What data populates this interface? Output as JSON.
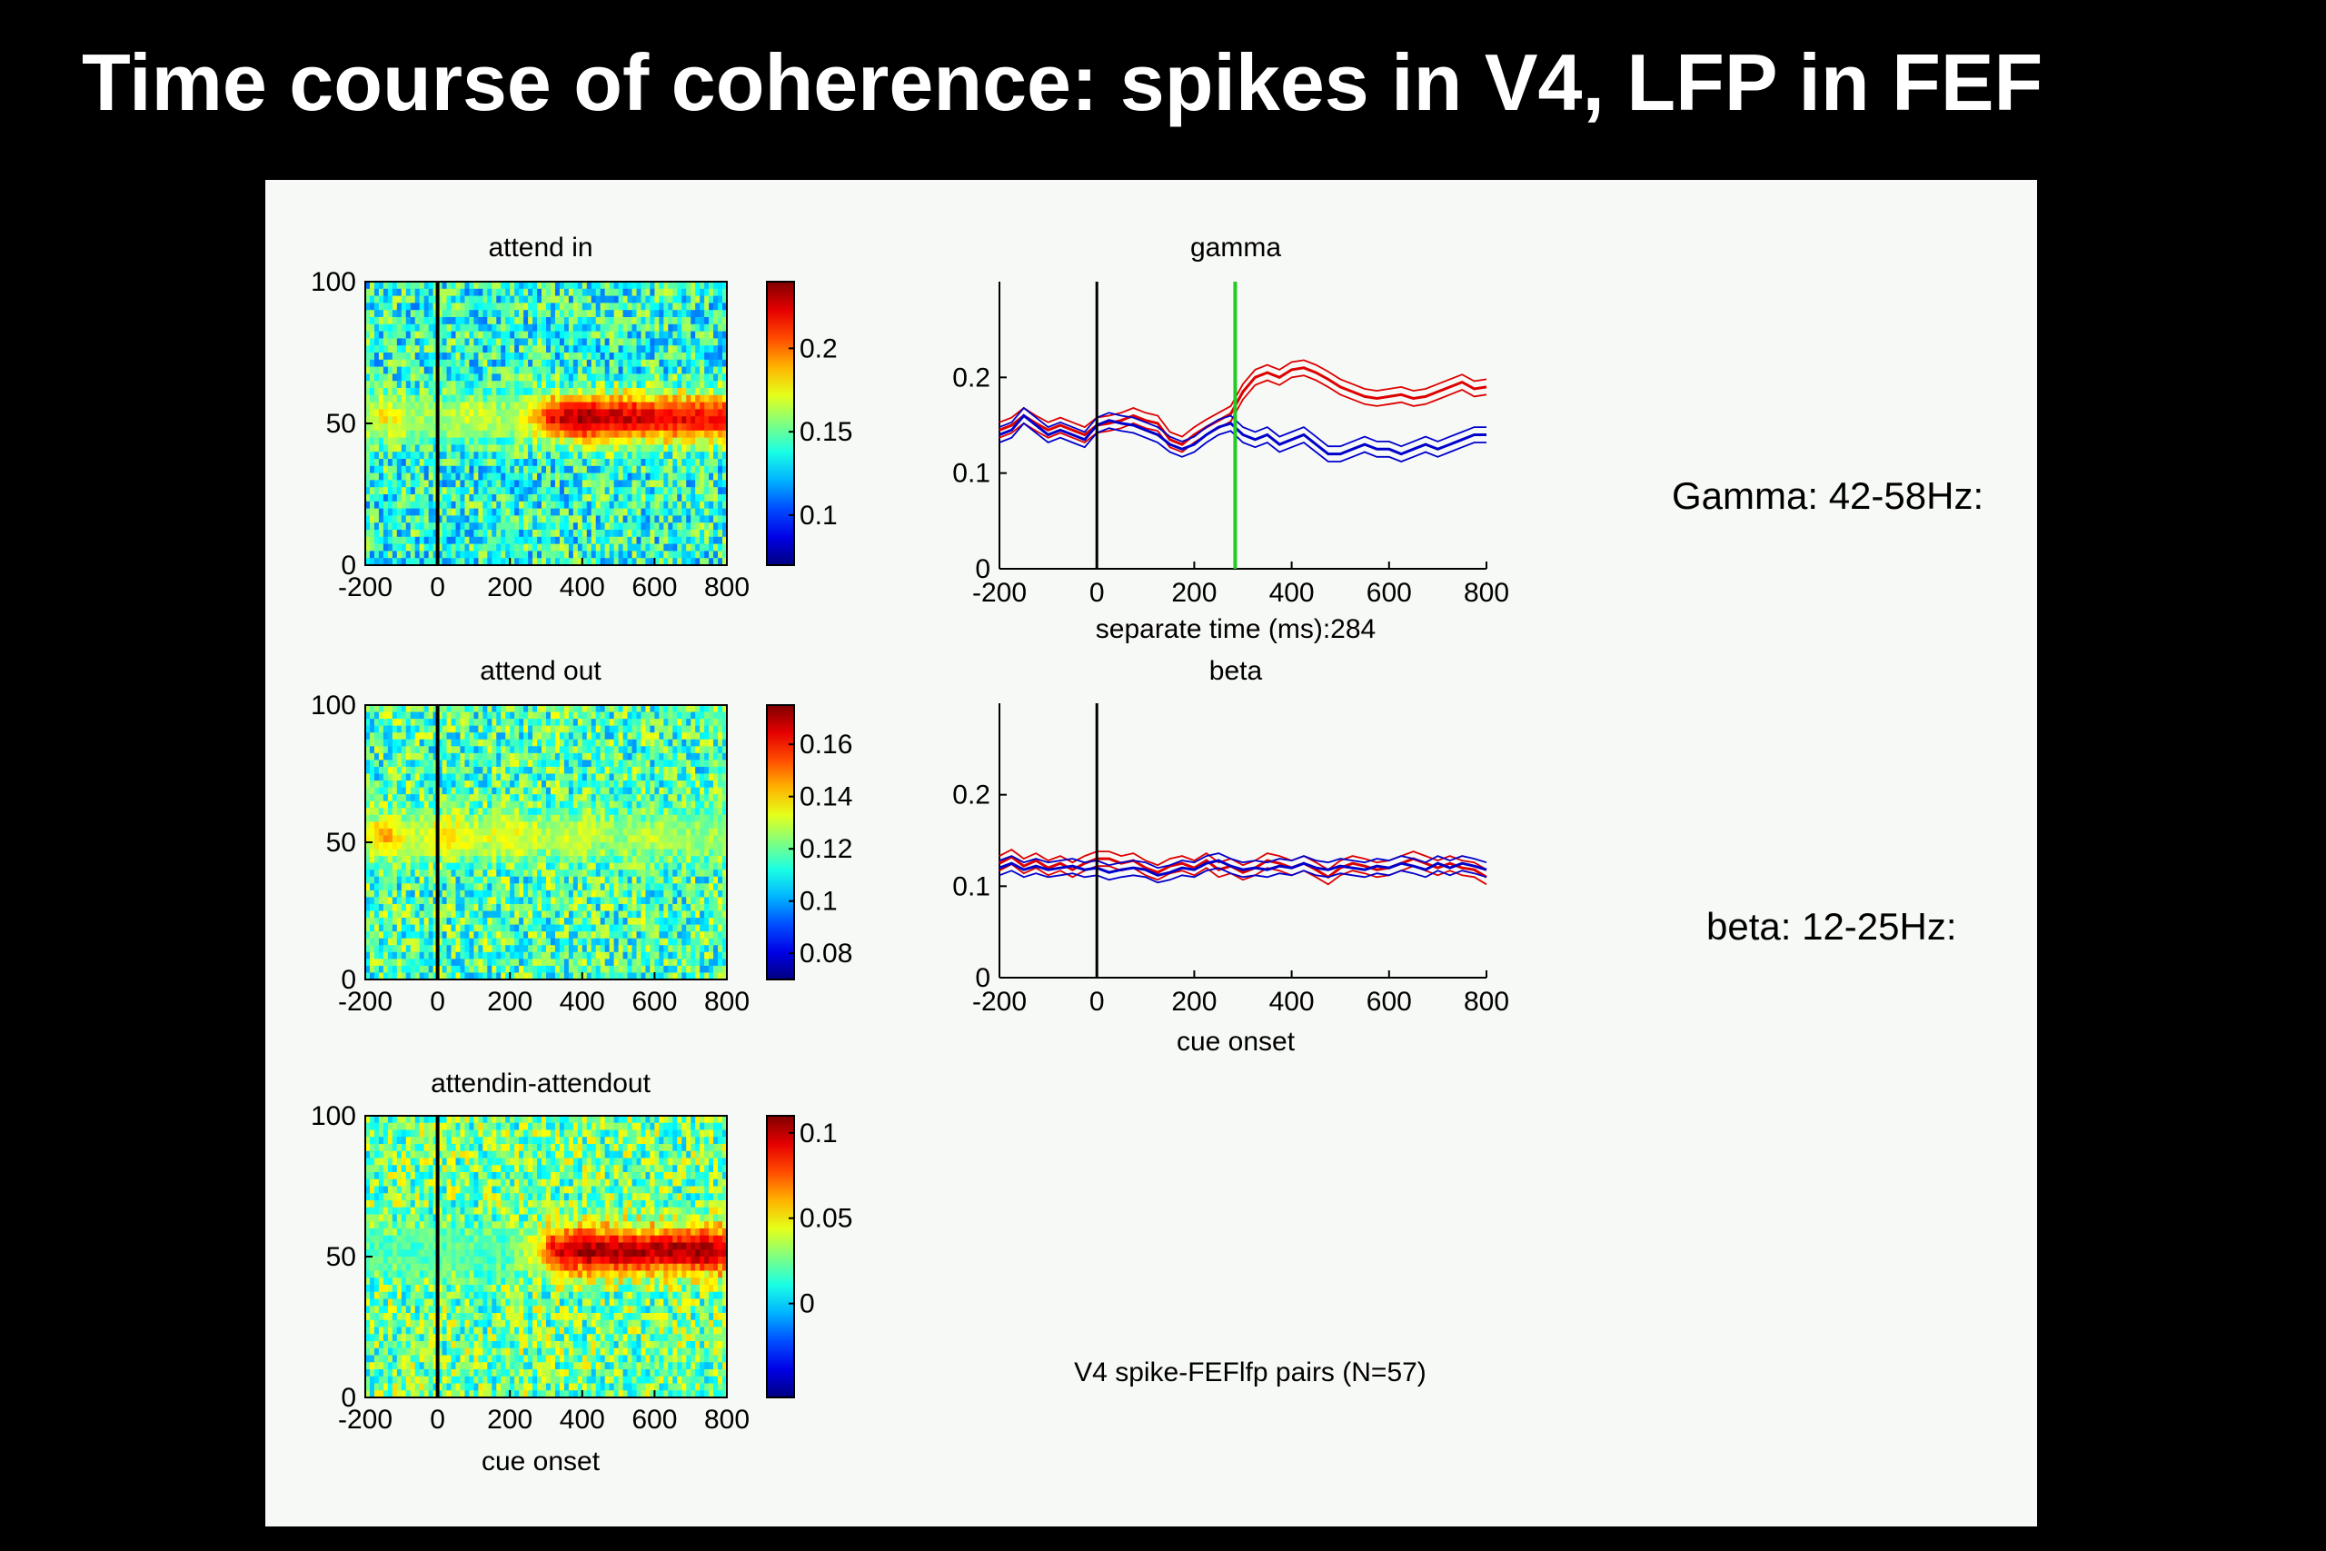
{
  "slide": {
    "title": "Time course of coherence: spikes in V4, LFP in FEF",
    "gamma_note": "Gamma: 42-58Hz:",
    "beta_note": "beta: 12-25Hz:",
    "footnote": "V4 spike-FEFlfp pairs (N=57)"
  },
  "colors": {
    "background": "#000000",
    "panel": "#f7f9f6",
    "attend_in_line": "#dd0000",
    "attend_out_line": "#0000cc",
    "separation_marker": "#22cc22",
    "onset_marker": "#000000"
  },
  "chart_data": [
    {
      "type": "heatmap",
      "title": "attend in",
      "xlabel": "",
      "x_ticks": [
        "-200",
        "0",
        "200",
        "400",
        "600",
        "800"
      ],
      "y_ticks": [
        "0",
        "50",
        "100"
      ],
      "xlim": [
        -200,
        800
      ],
      "ylim": [
        0,
        100
      ],
      "colorbar_ticks": [
        "0.1",
        "0.15",
        "0.2"
      ],
      "colorbar_range": [
        0.07,
        0.24
      ],
      "vertical_marker_x": 0,
      "band": {
        "low": 42,
        "high": 58,
        "center": 52,
        "profile": [
          [
            -200,
            0.16
          ],
          [
            -150,
            0.18
          ],
          [
            -100,
            0.17
          ],
          [
            -50,
            0.16
          ],
          [
            0,
            0.16
          ],
          [
            100,
            0.17
          ],
          [
            200,
            0.16
          ],
          [
            280,
            0.19
          ],
          [
            320,
            0.22
          ],
          [
            400,
            0.235
          ],
          [
            500,
            0.225
          ],
          [
            600,
            0.225
          ],
          [
            700,
            0.22
          ],
          [
            800,
            0.22
          ]
        ]
      },
      "background_level": 0.14
    },
    {
      "type": "heatmap",
      "title": "attend out",
      "xlabel": "",
      "x_ticks": [
        "-200",
        "0",
        "200",
        "400",
        "600",
        "800"
      ],
      "y_ticks": [
        "0",
        "50",
        "100"
      ],
      "xlim": [
        -200,
        800
      ],
      "ylim": [
        0,
        100
      ],
      "colorbar_ticks": [
        "0.08",
        "0.1",
        "0.12",
        "0.14",
        "0.16"
      ],
      "colorbar_range": [
        0.07,
        0.175
      ],
      "vertical_marker_x": 0,
      "band": {
        "low": 42,
        "high": 58,
        "center": 52,
        "profile": [
          [
            -200,
            0.13
          ],
          [
            -150,
            0.145
          ],
          [
            -100,
            0.135
          ],
          [
            -50,
            0.13
          ],
          [
            0,
            0.14
          ],
          [
            50,
            0.14
          ],
          [
            100,
            0.13
          ],
          [
            200,
            0.135
          ],
          [
            300,
            0.128
          ],
          [
            400,
            0.13
          ],
          [
            500,
            0.125
          ],
          [
            600,
            0.128
          ],
          [
            700,
            0.125
          ],
          [
            800,
            0.125
          ]
        ]
      },
      "background_level": 0.117
    },
    {
      "type": "heatmap",
      "title": "attendin-attendout",
      "xlabel": "cue onset",
      "x_ticks": [
        "-200",
        "0",
        "200",
        "400",
        "600",
        "800"
      ],
      "y_ticks": [
        "0",
        "50",
        "100"
      ],
      "xlim": [
        -200,
        800
      ],
      "ylim": [
        0,
        100
      ],
      "colorbar_ticks": [
        "0",
        "0.05",
        "0.1"
      ],
      "colorbar_range": [
        -0.055,
        0.11
      ],
      "vertical_marker_x": 0,
      "band": {
        "low": 42,
        "high": 58,
        "center": 52,
        "profile": [
          [
            -200,
            0.02
          ],
          [
            0,
            0.02
          ],
          [
            100,
            0.02
          ],
          [
            200,
            0.02
          ],
          [
            280,
            0.05
          ],
          [
            320,
            0.09
          ],
          [
            400,
            0.105
          ],
          [
            500,
            0.1
          ],
          [
            600,
            0.1
          ],
          [
            700,
            0.105
          ],
          [
            800,
            0.1
          ]
        ]
      },
      "background_level": 0.025
    },
    {
      "type": "line",
      "title": "gamma",
      "xlabel": "separate time (ms):284",
      "x_ticks": [
        "-200",
        "0",
        "200",
        "400",
        "600",
        "800"
      ],
      "y_ticks": [
        "0",
        "0.1",
        "0.2"
      ],
      "xlim": [
        -200,
        800
      ],
      "ylim": [
        0,
        0.3
      ],
      "vertical_marker_x": 0,
      "separation_x": 284,
      "series": [
        {
          "key": "attend_in",
          "x": [
            -200,
            -175,
            -150,
            -125,
            -100,
            -75,
            -50,
            -25,
            0,
            25,
            50,
            75,
            100,
            125,
            150,
            175,
            200,
            225,
            250,
            275,
            300,
            325,
            350,
            375,
            400,
            425,
            450,
            475,
            500,
            525,
            550,
            575,
            600,
            625,
            650,
            675,
            700,
            725,
            750,
            775,
            800
          ],
          "y": [
            0.145,
            0.15,
            0.16,
            0.152,
            0.145,
            0.15,
            0.145,
            0.14,
            0.15,
            0.152,
            0.155,
            0.16,
            0.155,
            0.152,
            0.135,
            0.13,
            0.14,
            0.148,
            0.155,
            0.162,
            0.185,
            0.2,
            0.205,
            0.2,
            0.208,
            0.21,
            0.205,
            0.198,
            0.19,
            0.185,
            0.18,
            0.178,
            0.18,
            0.182,
            0.178,
            0.18,
            0.185,
            0.19,
            0.195,
            0.188,
            0.19
          ]
        },
        {
          "key": "attend_out",
          "x": [
            -200,
            -175,
            -150,
            -125,
            -100,
            -75,
            -50,
            -25,
            0,
            25,
            50,
            75,
            100,
            125,
            150,
            175,
            200,
            225,
            250,
            275,
            300,
            325,
            350,
            375,
            400,
            425,
            450,
            475,
            500,
            525,
            550,
            575,
            600,
            625,
            650,
            675,
            700,
            725,
            750,
            775,
            800
          ],
          "y": [
            0.14,
            0.145,
            0.16,
            0.15,
            0.14,
            0.145,
            0.14,
            0.135,
            0.15,
            0.155,
            0.152,
            0.15,
            0.145,
            0.14,
            0.13,
            0.125,
            0.13,
            0.14,
            0.148,
            0.152,
            0.14,
            0.135,
            0.14,
            0.13,
            0.135,
            0.14,
            0.13,
            0.12,
            0.12,
            0.125,
            0.13,
            0.125,
            0.125,
            0.12,
            0.125,
            0.13,
            0.125,
            0.13,
            0.135,
            0.14,
            0.14
          ]
        }
      ]
    },
    {
      "type": "line",
      "title": "beta",
      "xlabel": "cue onset",
      "x_ticks": [
        "-200",
        "0",
        "200",
        "400",
        "600",
        "800"
      ],
      "y_ticks": [
        "0",
        "0.1",
        "0.2"
      ],
      "xlim": [
        -200,
        800
      ],
      "ylim": [
        0,
        0.3
      ],
      "vertical_marker_x": 0,
      "series": [
        {
          "key": "attend_in",
          "x": [
            -200,
            -175,
            -150,
            -125,
            -100,
            -75,
            -50,
            -25,
            0,
            25,
            50,
            75,
            100,
            125,
            150,
            175,
            200,
            225,
            250,
            275,
            300,
            325,
            350,
            375,
            400,
            425,
            450,
            475,
            500,
            525,
            550,
            575,
            600,
            625,
            650,
            675,
            700,
            725,
            750,
            775,
            800
          ],
          "y": [
            0.125,
            0.132,
            0.122,
            0.128,
            0.12,
            0.125,
            0.118,
            0.125,
            0.13,
            0.13,
            0.125,
            0.128,
            0.12,
            0.115,
            0.122,
            0.125,
            0.12,
            0.128,
            0.118,
            0.122,
            0.115,
            0.12,
            0.128,
            0.125,
            0.12,
            0.125,
            0.118,
            0.11,
            0.12,
            0.125,
            0.122,
            0.118,
            0.12,
            0.125,
            0.13,
            0.125,
            0.12,
            0.125,
            0.12,
            0.118,
            0.11
          ]
        },
        {
          "key": "attend_out",
          "x": [
            -200,
            -175,
            -150,
            -125,
            -100,
            -75,
            -50,
            -25,
            0,
            25,
            50,
            75,
            100,
            125,
            150,
            175,
            200,
            225,
            250,
            275,
            300,
            325,
            350,
            375,
            400,
            425,
            450,
            475,
            500,
            525,
            550,
            575,
            600,
            625,
            650,
            675,
            700,
            725,
            750,
            775,
            800
          ],
          "y": [
            0.12,
            0.125,
            0.118,
            0.122,
            0.118,
            0.12,
            0.122,
            0.118,
            0.12,
            0.115,
            0.118,
            0.12,
            0.118,
            0.112,
            0.115,
            0.12,
            0.118,
            0.125,
            0.128,
            0.122,
            0.118,
            0.12,
            0.118,
            0.122,
            0.12,
            0.125,
            0.12,
            0.118,
            0.122,
            0.12,
            0.118,
            0.122,
            0.12,
            0.125,
            0.122,
            0.118,
            0.125,
            0.12,
            0.125,
            0.122,
            0.118
          ]
        }
      ]
    }
  ]
}
